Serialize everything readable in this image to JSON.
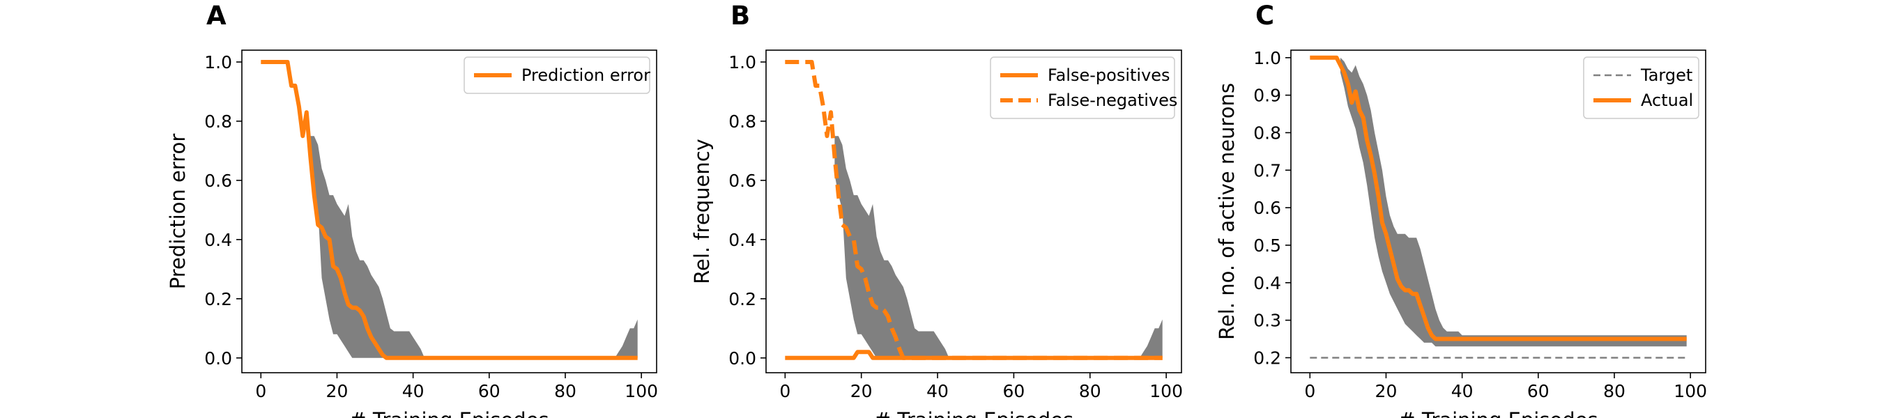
{
  "chart_data": [
    {
      "panel": "A",
      "type": "line",
      "xlabel": "# Training Episodes",
      "ylabel": "Prediction error",
      "xlim": [
        -5,
        104
      ],
      "ylim": [
        -0.05,
        1.04
      ],
      "xticks": [
        0,
        20,
        40,
        60,
        80,
        100
      ],
      "yticks": [
        0.0,
        0.2,
        0.4,
        0.6,
        0.8,
        1.0
      ],
      "ytick_labels": [
        "0.0",
        "0.2",
        "0.4",
        "0.6",
        "0.8",
        "1.0"
      ],
      "grid": false,
      "legend": {
        "placement": "top-right",
        "entries": [
          "Prediction error"
        ]
      },
      "series": [
        {
          "name": "Prediction error",
          "style": "solid",
          "color": "#ff7f0e",
          "x": [
            0,
            7,
            8,
            9,
            10,
            11,
            12,
            13,
            14,
            15,
            16,
            17,
            18,
            19,
            20,
            21,
            22,
            23,
            24,
            25,
            26,
            27,
            28,
            29,
            30,
            31,
            32,
            33,
            40,
            99
          ],
          "y": [
            1.0,
            1.0,
            0.92,
            0.92,
            0.85,
            0.75,
            0.83,
            0.68,
            0.55,
            0.45,
            0.44,
            0.41,
            0.4,
            0.31,
            0.3,
            0.27,
            0.22,
            0.18,
            0.17,
            0.17,
            0.16,
            0.14,
            0.1,
            0.07,
            0.05,
            0.03,
            0.01,
            0.0,
            0.0,
            0.0
          ]
        }
      ],
      "band": {
        "color": "#808080",
        "x": [
          13,
          14,
          15,
          16,
          17,
          18,
          19,
          20,
          21,
          22,
          23,
          24,
          25,
          26,
          27,
          28,
          29,
          30,
          31,
          32,
          33,
          34,
          35,
          36,
          37,
          38,
          39,
          40,
          41,
          42,
          43,
          90,
          91,
          92,
          93,
          94,
          95,
          96,
          97,
          98,
          99
        ],
        "upper": [
          0.75,
          0.75,
          0.72,
          0.64,
          0.6,
          0.55,
          0.55,
          0.52,
          0.5,
          0.48,
          0.52,
          0.41,
          0.36,
          0.33,
          0.33,
          0.31,
          0.28,
          0.26,
          0.24,
          0.2,
          0.15,
          0.1,
          0.09,
          0.09,
          0.09,
          0.09,
          0.09,
          0.07,
          0.05,
          0.03,
          0.0,
          0.0,
          0.0,
          0.0,
          0.0,
          0.02,
          0.04,
          0.07,
          0.1,
          0.1,
          0.13
        ],
        "lower": [
          0.62,
          0.55,
          0.5,
          0.27,
          0.2,
          0.13,
          0.08,
          0.08,
          0.06,
          0.04,
          0.02,
          0.0,
          0.0,
          0.0,
          0.0,
          0.0,
          0.0,
          0.0,
          0.0,
          0.0,
          0.0,
          0.0,
          0.0,
          0.0,
          0.0,
          0.0,
          0.0,
          0.0,
          0.0,
          0.0,
          0.0,
          0.0,
          0.0,
          0.0,
          0.0,
          0.0,
          0.0,
          0.0,
          0.0,
          0.0,
          0.0
        ]
      }
    },
    {
      "panel": "B",
      "type": "line",
      "xlabel": "# Training Episodes",
      "ylabel": "Rel. frequency",
      "xlim": [
        -5,
        104
      ],
      "ylim": [
        -0.05,
        1.04
      ],
      "xticks": [
        0,
        20,
        40,
        60,
        80,
        100
      ],
      "yticks": [
        0.0,
        0.2,
        0.4,
        0.6,
        0.8,
        1.0
      ],
      "ytick_labels": [
        "0.0",
        "0.2",
        "0.4",
        "0.6",
        "0.8",
        "1.0"
      ],
      "grid": false,
      "legend": {
        "placement": "top-right",
        "entries": [
          "False-positives",
          "False-negatives"
        ]
      },
      "series": [
        {
          "name": "False-positives",
          "style": "solid",
          "color": "#ff7f0e",
          "x": [
            0,
            18,
            19,
            20,
            21,
            22,
            23,
            24,
            99
          ],
          "y": [
            0.0,
            0.0,
            0.02,
            0.02,
            0.02,
            0.02,
            0.0,
            0.0,
            0.0
          ]
        },
        {
          "name": "False-negatives",
          "style": "dashed",
          "color": "#ff7f0e",
          "x": [
            0,
            7,
            8,
            9,
            10,
            11,
            12,
            13,
            14,
            15,
            16,
            17,
            18,
            19,
            20,
            21,
            22,
            23,
            24,
            25,
            26,
            27,
            28,
            29,
            30,
            31,
            99
          ],
          "y": [
            1.0,
            1.0,
            0.92,
            0.92,
            0.85,
            0.75,
            0.83,
            0.68,
            0.55,
            0.45,
            0.44,
            0.41,
            0.4,
            0.31,
            0.3,
            0.27,
            0.22,
            0.18,
            0.17,
            0.17,
            0.16,
            0.14,
            0.1,
            0.07,
            0.03,
            0.0,
            0.0
          ]
        }
      ],
      "band": {
        "color": "#808080",
        "x": [
          13,
          14,
          15,
          16,
          17,
          18,
          19,
          20,
          21,
          22,
          23,
          24,
          25,
          26,
          27,
          28,
          29,
          30,
          31,
          32,
          33,
          34,
          35,
          36,
          37,
          38,
          39,
          40,
          41,
          42,
          43,
          90,
          91,
          92,
          93,
          94,
          95,
          96,
          97,
          98,
          99
        ],
        "upper": [
          0.75,
          0.75,
          0.72,
          0.64,
          0.6,
          0.55,
          0.55,
          0.52,
          0.5,
          0.48,
          0.52,
          0.41,
          0.36,
          0.33,
          0.33,
          0.31,
          0.28,
          0.26,
          0.24,
          0.2,
          0.15,
          0.1,
          0.09,
          0.09,
          0.09,
          0.09,
          0.09,
          0.07,
          0.05,
          0.03,
          0.0,
          0.0,
          0.0,
          0.0,
          0.0,
          0.02,
          0.04,
          0.07,
          0.1,
          0.1,
          0.13
        ],
        "lower": [
          0.62,
          0.55,
          0.5,
          0.27,
          0.2,
          0.13,
          0.08,
          0.08,
          0.06,
          0.04,
          0.02,
          0.0,
          0.0,
          0.0,
          0.0,
          0.0,
          0.0,
          0.0,
          0.0,
          0.0,
          0.0,
          0.0,
          0.0,
          0.0,
          0.0,
          0.0,
          0.0,
          0.0,
          0.0,
          0.0,
          0.0,
          0.0,
          0.0,
          0.0,
          0.0,
          0.0,
          0.0,
          0.0,
          0.0,
          0.0,
          0.0
        ]
      }
    },
    {
      "panel": "C",
      "type": "line",
      "xlabel": "# Training Episodes",
      "ylabel": "Rel. no. of active neurons",
      "xlim": [
        -5,
        104
      ],
      "ylim": [
        0.16,
        1.02
      ],
      "xticks": [
        0,
        20,
        40,
        60,
        80,
        100
      ],
      "yticks": [
        0.2,
        0.3,
        0.4,
        0.5,
        0.6,
        0.7,
        0.8,
        0.9,
        1.0
      ],
      "ytick_labels": [
        "0.2",
        "0.3",
        "0.4",
        "0.5",
        "0.6",
        "0.7",
        "0.8",
        "0.9",
        "1.0"
      ],
      "grid": false,
      "legend": {
        "placement": "top-right",
        "entries": [
          "Target",
          "Actual"
        ]
      },
      "series": [
        {
          "name": "Target",
          "style": "dashed",
          "color": "#808080",
          "x": [
            0,
            99
          ],
          "y": [
            0.2,
            0.2
          ]
        },
        {
          "name": "Actual",
          "style": "solid",
          "color": "#ff7f0e",
          "x": [
            0,
            7,
            8,
            9,
            10,
            11,
            12,
            13,
            14,
            15,
            16,
            17,
            18,
            19,
            20,
            21,
            22,
            23,
            24,
            25,
            26,
            27,
            28,
            29,
            30,
            31,
            32,
            33,
            34,
            35,
            36,
            40,
            99
          ],
          "y": [
            1.0,
            1.0,
            0.98,
            0.96,
            0.93,
            0.88,
            0.91,
            0.86,
            0.84,
            0.78,
            0.74,
            0.69,
            0.63,
            0.56,
            0.53,
            0.49,
            0.45,
            0.41,
            0.39,
            0.38,
            0.38,
            0.37,
            0.37,
            0.34,
            0.31,
            0.28,
            0.26,
            0.25,
            0.25,
            0.25,
            0.25,
            0.25,
            0.25
          ]
        }
      ],
      "band": {
        "color": "#808080",
        "x": [
          8,
          9,
          10,
          11,
          12,
          13,
          14,
          15,
          16,
          17,
          18,
          19,
          20,
          21,
          22,
          23,
          24,
          25,
          26,
          27,
          28,
          29,
          30,
          31,
          32,
          33,
          34,
          35,
          36,
          37,
          38,
          39,
          40,
          99
        ],
        "upper": [
          1.0,
          0.99,
          0.97,
          0.96,
          0.98,
          0.95,
          0.93,
          0.9,
          0.86,
          0.8,
          0.75,
          0.7,
          0.63,
          0.58,
          0.55,
          0.53,
          0.53,
          0.53,
          0.52,
          0.52,
          0.52,
          0.49,
          0.45,
          0.41,
          0.37,
          0.33,
          0.3,
          0.28,
          0.27,
          0.27,
          0.27,
          0.27,
          0.26,
          0.26
        ],
        "lower": [
          0.96,
          0.92,
          0.87,
          0.84,
          0.81,
          0.76,
          0.72,
          0.66,
          0.59,
          0.52,
          0.47,
          0.43,
          0.4,
          0.37,
          0.35,
          0.33,
          0.31,
          0.29,
          0.28,
          0.27,
          0.26,
          0.25,
          0.24,
          0.24,
          0.24,
          0.23,
          0.23,
          0.23,
          0.23,
          0.23,
          0.23,
          0.23,
          0.23,
          0.23
        ]
      }
    }
  ]
}
